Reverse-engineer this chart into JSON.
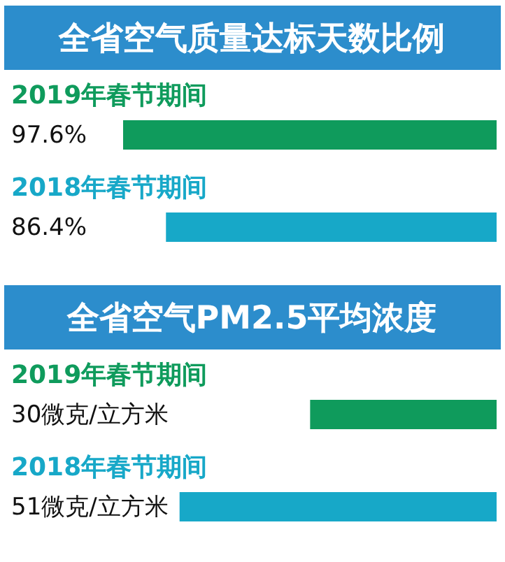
{
  "chart_data": [
    {
      "type": "bar",
      "orientation": "horizontal",
      "title": "全省空气质量达标天数比例",
      "categories": [
        "2019年春节期间",
        "2018年春节期间"
      ],
      "values": [
        97.6,
        86.4
      ],
      "colors": [
        "#0f9b5c",
        "#17a8c8"
      ],
      "value_labels": [
        "97.6%",
        "86.4%"
      ]
    },
    {
      "type": "bar",
      "orientation": "horizontal",
      "title": "全省空气PM2.5平均浓度",
      "categories": [
        "2019年春节期间",
        "2018年春节期间"
      ],
      "values": [
        30,
        51
      ],
      "colors": [
        "#0f9b5c",
        "#17a8c8"
      ],
      "value_labels": [
        "30微克/立方米",
        "51微克/立方米"
      ]
    }
  ]
}
